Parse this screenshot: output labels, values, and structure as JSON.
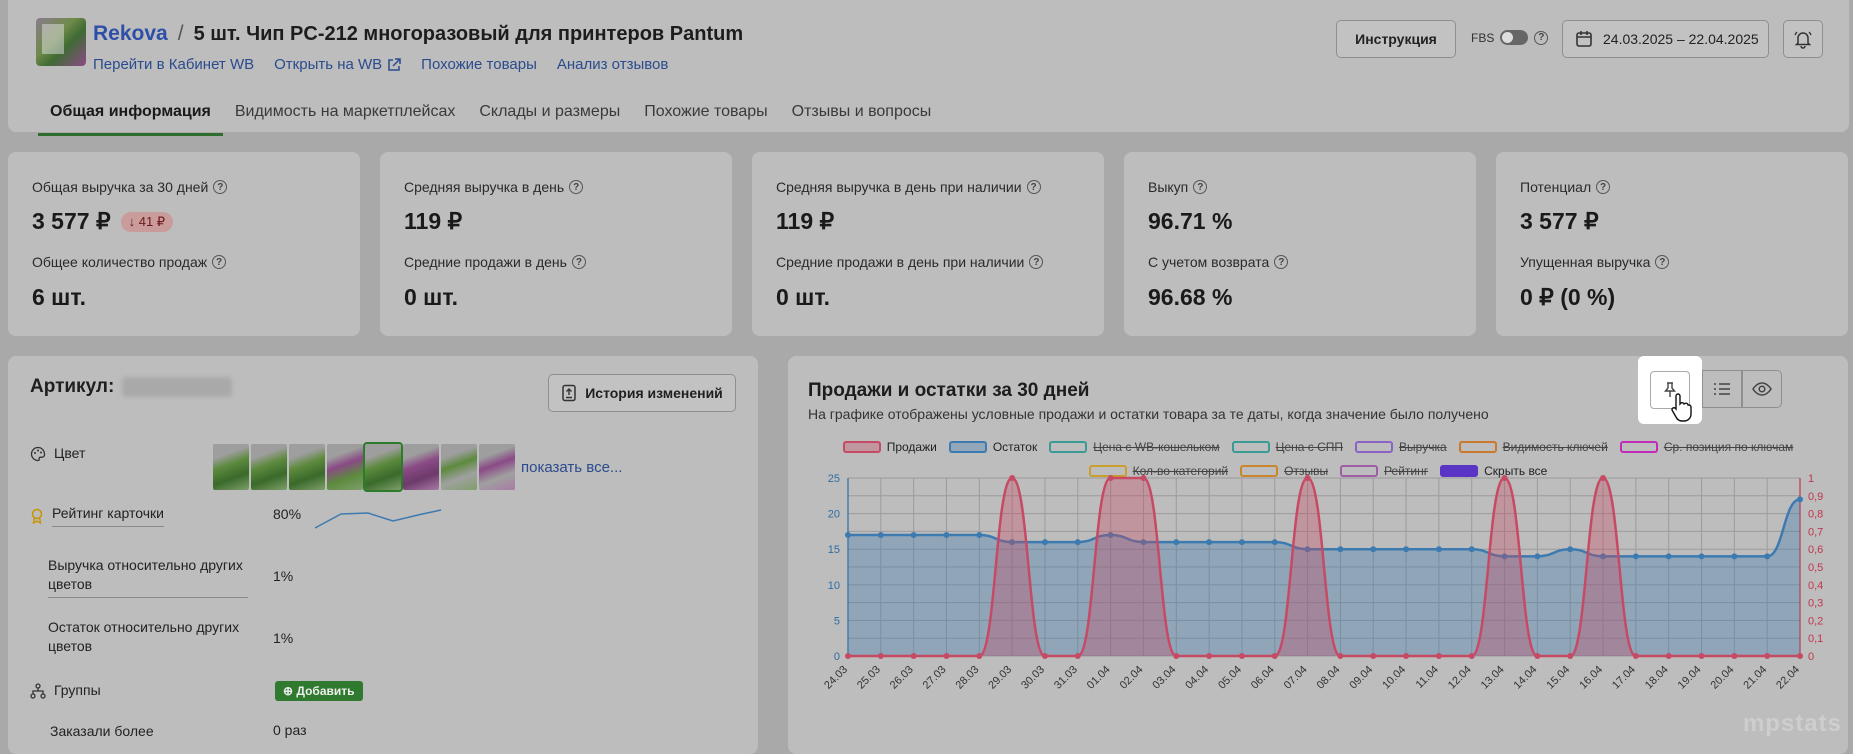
{
  "header": {
    "brand": "Rekova",
    "separator": "/",
    "product_title": "5 шт. Чип PC-212 многоразовый для принтеров Pantum",
    "links": [
      "Перейти в Кабинет WB",
      "Открыть на WB",
      "Похожие товары",
      "Анализ отзывов"
    ],
    "instruction_button": "Инструкция",
    "fbs_label": "FBS",
    "date_range": "24.03.2025 – 22.04.2025"
  },
  "tabs": [
    "Общая информация",
    "Видимость на маркетплейсах",
    "Склады и размеры",
    "Похожие товары",
    "Отзывы и вопросы"
  ],
  "cards": [
    {
      "label1": "Общая выручка за 30 дней",
      "value1": "3 577 ₽",
      "badge": "41 ₽",
      "label2": "Общее количество продаж",
      "value2": "6 шт."
    },
    {
      "label1": "Средняя выручка в день",
      "value1": "119 ₽",
      "label2": "Средние продажи в день",
      "value2": "0 шт."
    },
    {
      "label1": "Средняя выручка в день при наличии",
      "value1": "119 ₽",
      "label2": "Средние продажи в день при наличии",
      "value2": "0 шт."
    },
    {
      "label1": "Выкуп",
      "value1": "96.71 %",
      "label2": "С учетом возврата",
      "value2": "96.68 %"
    },
    {
      "label1": "Потенциал",
      "value1": "3 577 ₽",
      "label2": "Упущенная выручка",
      "value2": "0 ₽ (0 %)"
    }
  ],
  "article": {
    "title": "Артикул:",
    "history_button": "История изменений",
    "color_label": "Цвет",
    "show_all": "показать все...",
    "rating_label": "Рейтинг карточки",
    "rating_value": "80%",
    "rev_rel_label": "Выручка относительно других цветов",
    "rev_rel_value": "1%",
    "stock_rel_label": "Остаток относительно других цветов",
    "stock_rel_value": "1%",
    "groups_label": "Группы",
    "add_button": "Добавить",
    "ordered_label": "Заказали более",
    "ordered_value": "0 раз"
  },
  "chart_panel": {
    "title": "Продажи и остатки за 30 дней",
    "subtitle": "На графике отображены условные продажи и остатки товара за те даты, когда значение было получено",
    "watermark": "mpstats"
  },
  "chart_data": {
    "type": "line",
    "x": [
      "24.03",
      "25.03",
      "26.03",
      "27.03",
      "28.03",
      "29.03",
      "30.03",
      "31.03",
      "01.04",
      "02.04",
      "03.04",
      "04.04",
      "05.04",
      "06.04",
      "07.04",
      "08.04",
      "09.04",
      "10.04",
      "11.04",
      "12.04",
      "13.04",
      "14.04",
      "15.04",
      "16.04",
      "17.04",
      "18.04",
      "19.04",
      "20.04",
      "21.04",
      "22.04"
    ],
    "series": [
      {
        "name": "Продажи",
        "axis": "right",
        "color": "#c64a64",
        "values": [
          0,
          0,
          0,
          0,
          0,
          1,
          0,
          0,
          1,
          1,
          0,
          0,
          0,
          0,
          1,
          0,
          0,
          0,
          0,
          0,
          1,
          0,
          0,
          1,
          0,
          0,
          0,
          0,
          0,
          0
        ]
      },
      {
        "name": "Остаток",
        "axis": "left",
        "color": "#3d7ab0",
        "values": [
          17,
          17,
          17,
          17,
          17,
          16,
          16,
          16,
          17,
          16,
          16,
          16,
          16,
          16,
          15,
          15,
          15,
          15,
          15,
          15,
          14,
          14,
          15,
          14,
          14,
          14,
          14,
          14,
          14,
          22
        ]
      }
    ],
    "legend": [
      {
        "name": "Продажи",
        "color": "#c64a64",
        "active": true
      },
      {
        "name": "Остаток",
        "color": "#3d7ab0",
        "active": true
      },
      {
        "name": "Цена с WB-кошельком",
        "color": "#3a9a94",
        "active": false
      },
      {
        "name": "Цена с СПП",
        "color": "#3a9a94",
        "active": false
      },
      {
        "name": "Выручка",
        "color": "#8a63c4",
        "active": false
      },
      {
        "name": "Видимость ключей",
        "color": "#c9782d",
        "active": false
      },
      {
        "name": "Ср. позиция по ключам",
        "color": "#c22bb8",
        "active": false
      },
      {
        "name": "Кол-во категорий",
        "color": "#c9a02d",
        "active": false
      },
      {
        "name": "Отзывы",
        "color": "#c9872d",
        "active": false
      },
      {
        "name": "Рейтинг",
        "color": "#a05ea6",
        "active": false
      },
      {
        "name": "Скрыть все",
        "color": "#5a34c4",
        "active": true,
        "filled": true
      }
    ],
    "y_left_ticks": [
      0,
      5,
      10,
      15,
      20,
      25
    ],
    "y_right_ticks": [
      "0",
      "0,1",
      "0,2",
      "0,3",
      "0,4",
      "0,5",
      "0,6",
      "0,7",
      "0,8",
      "0,9",
      "1"
    ],
    "ylim_left": [
      0,
      25
    ],
    "ylim_right": [
      0,
      1
    ]
  }
}
